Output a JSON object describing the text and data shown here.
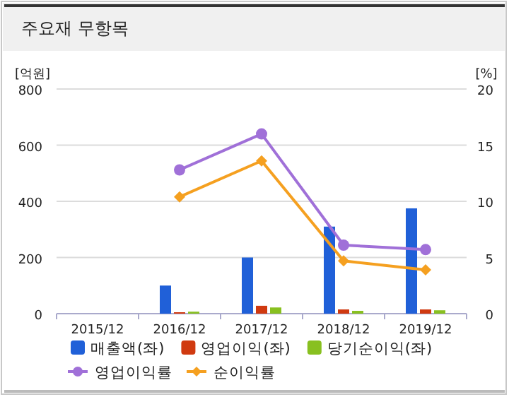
{
  "chart_data": {
    "type": "bar",
    "title": "주요재 무항목",
    "ylabel": "[억원]",
    "y2label": "[%]",
    "categories": [
      "2015/12",
      "2016/12",
      "2017/12",
      "2018/12",
      "2019/12"
    ],
    "series": [
      {
        "name": "매출액(좌)",
        "color": "#2060d8",
        "values": [
          null,
          100,
          200,
          310,
          375
        ]
      },
      {
        "name": "영업이익(좌)",
        "color": "#d03a10",
        "values": [
          null,
          5,
          28,
          15,
          15
        ]
      },
      {
        "name": "당기순이익(좌)",
        "color": "#88c020",
        "values": [
          null,
          7,
          22,
          10,
          12
        ]
      },
      {
        "name": "영업이익률",
        "type": "line",
        "axis": "y2",
        "marker": "circle",
        "color": "#a070d8",
        "values": [
          null,
          12.8,
          16.0,
          6.1,
          5.7
        ]
      },
      {
        "name": "순이익률",
        "type": "line",
        "axis": "y2",
        "marker": "diamond",
        "color": "#f5a020",
        "values": [
          null,
          10.4,
          13.6,
          4.7,
          3.9
        ]
      }
    ],
    "ylim": [
      0,
      800
    ],
    "yticks": [
      0,
      200,
      400,
      600,
      800
    ],
    "y2lim": [
      0,
      20
    ],
    "y2ticks": [
      0,
      5,
      10,
      15,
      20
    ],
    "grid": "y",
    "legend": "bottom"
  }
}
